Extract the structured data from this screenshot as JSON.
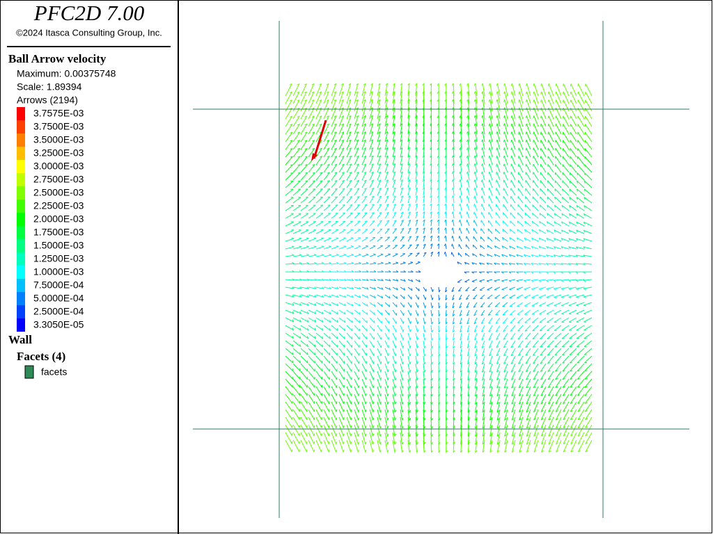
{
  "header": {
    "title": "PFC2D 7.00",
    "copyright": "©2024 Itasca Consulting Group, Inc."
  },
  "legend": {
    "title": "Ball Arrow velocity",
    "maximum": "Maximum: 0.00375748",
    "scale": "Scale: 1.89394",
    "arrows": "Arrows (2194)",
    "entries": [
      {
        "label": "3.7575E-03",
        "color": "#ff0000"
      },
      {
        "label": "3.7500E-03",
        "color": "#ff4000"
      },
      {
        "label": "3.5000E-03",
        "color": "#ff8000"
      },
      {
        "label": "3.2500E-03",
        "color": "#ffbf00"
      },
      {
        "label": "3.0000E-03",
        "color": "#ffff00"
      },
      {
        "label": "2.7500E-03",
        "color": "#bfff00"
      },
      {
        "label": "2.5000E-03",
        "color": "#80ff00"
      },
      {
        "label": "2.2500E-03",
        "color": "#40ff00"
      },
      {
        "label": "2.0000E-03",
        "color": "#00ff00"
      },
      {
        "label": "1.7500E-03",
        "color": "#00ff40"
      },
      {
        "label": "1.5000E-03",
        "color": "#00ff80"
      },
      {
        "label": "1.2500E-03",
        "color": "#00ffbf"
      },
      {
        "label": "1.0000E-03",
        "color": "#00ffff"
      },
      {
        "label": "7.5000E-04",
        "color": "#00bfff"
      },
      {
        "label": "5.0000E-04",
        "color": "#0080ff"
      },
      {
        "label": "2.5000E-04",
        "color": "#0040ff"
      },
      {
        "label": "3.3050E-05",
        "color": "#0000ff"
      }
    ]
  },
  "wall": {
    "title": "Wall",
    "facets": "Facets (4)",
    "item": "facets",
    "item_color": "#2e8b57"
  }
}
